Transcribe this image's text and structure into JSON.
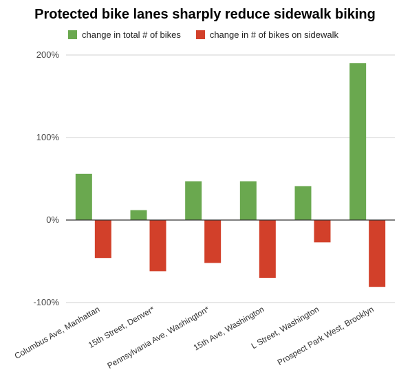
{
  "chart_data": {
    "type": "bar",
    "title": "Protected bike lanes sharply reduce sidewalk biking",
    "xlabel": "",
    "ylabel": "",
    "categories": [
      "Columbus Ave, Manhattan",
      "15th Street, Denver*",
      "Pennsylvania Ave, Washington*",
      "15th Ave, Washington",
      "L Street, Washington",
      "Prospect Park West, Brooklyn"
    ],
    "series": [
      {
        "name": "change in total # of bikes",
        "color": "#6aa84f",
        "values": [
          56,
          12,
          47,
          47,
          41,
          190
        ]
      },
      {
        "name": "change in # of bikes on sidewalk",
        "color": "#d2402a",
        "values": [
          -46,
          -62,
          -52,
          -70,
          -27,
          -81
        ]
      }
    ],
    "yticks": [
      "200%",
      "100%",
      "0%",
      "-100%"
    ],
    "ylim": [
      -100,
      200
    ],
    "grid": true,
    "legend_position": "top-left"
  }
}
